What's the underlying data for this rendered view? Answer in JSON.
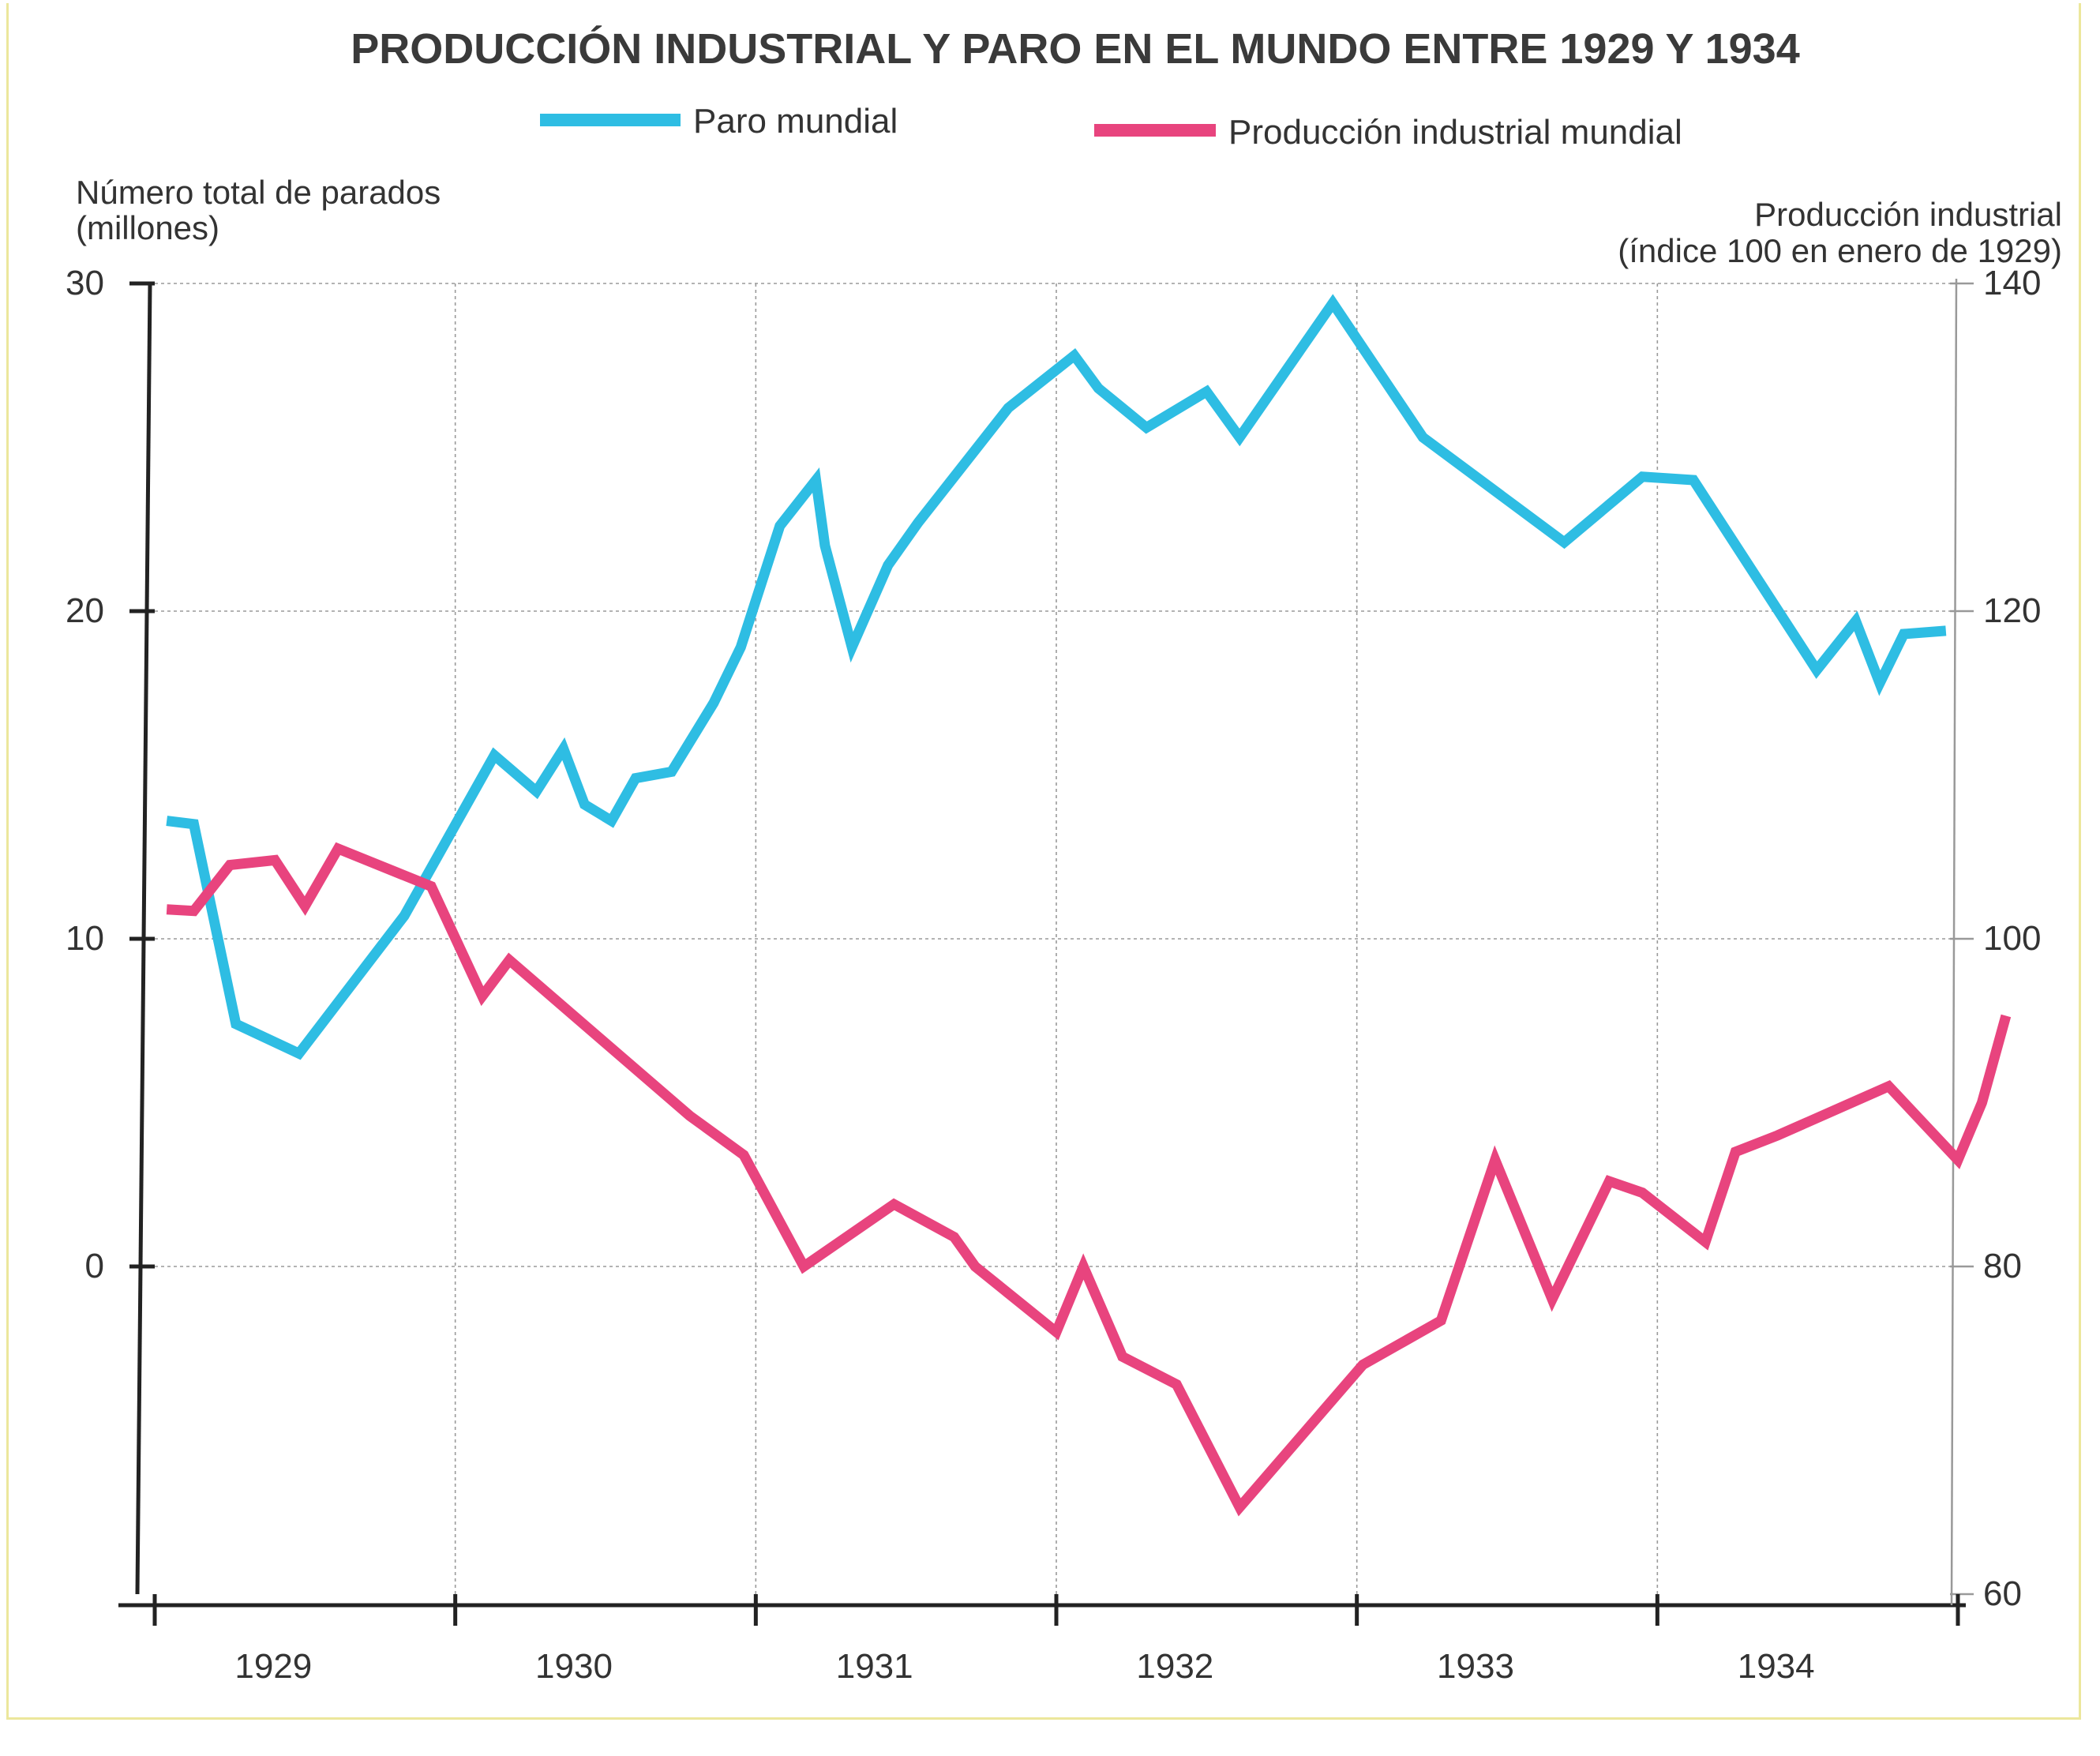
{
  "colors": {
    "paro": "#2ebde3",
    "produccion": "#e8447e",
    "axis": "#222222",
    "grid": "#9a9a9a"
  },
  "chart_data": {
    "type": "line",
    "title": "PRODUCCIÓN INDUSTRIAL Y PARO EN EL MUNDO ENTRE 1929 Y 1934",
    "y_left_label": [
      "Número total de parados",
      "(millones)"
    ],
    "y_right_label": [
      "Producción industrial",
      "(índice 100 en enero de 1929)"
    ],
    "x_ticks": [
      "1929",
      "1930",
      "1931",
      "1932",
      "1933",
      "1934"
    ],
    "xlim": [
      1929.0,
      1935.0
    ],
    "y_left_ticks": [
      "30",
      "20",
      "10",
      "0"
    ],
    "y_left_lim": [
      -10,
      30
    ],
    "y_right_ticks": [
      "140",
      "120",
      "100",
      "80",
      "60"
    ],
    "y_right_lim": [
      60,
      140
    ],
    "legend": [
      "Paro mundial",
      "Producción industrial mundial"
    ],
    "series": [
      {
        "name": "Paro mundial",
        "axis": "left",
        "x": [
          1929.04,
          1929.13,
          1929.27,
          1929.48,
          1929.83,
          1930.13,
          1930.27,
          1930.36,
          1930.43,
          1930.52,
          1930.6,
          1930.72,
          1930.86,
          1930.95,
          1931.08,
          1931.2,
          1931.23,
          1931.32,
          1931.44,
          1931.54,
          1931.84,
          1932.06,
          1932.14,
          1932.3,
          1932.5,
          1932.61,
          1932.92,
          1933.22,
          1933.69,
          1933.95,
          1934.12,
          1934.53,
          1934.66,
          1934.74,
          1934.82,
          1934.96
        ],
        "values": [
          13.6,
          13.5,
          7.4,
          6.5,
          10.7,
          15.6,
          14.5,
          15.8,
          14.1,
          13.6,
          14.9,
          15.1,
          17.2,
          18.9,
          22.6,
          24.0,
          22.0,
          18.9,
          21.4,
          22.7,
          26.2,
          27.8,
          26.8,
          25.6,
          26.7,
          25.3,
          29.4,
          25.3,
          22.1,
          24.1,
          24.0,
          18.2,
          19.7,
          17.8,
          19.3,
          19.4
        ]
      },
      {
        "name": "Producción industrial mundial",
        "axis": "right",
        "x": [
          1929.04,
          1929.13,
          1929.25,
          1929.4,
          1929.5,
          1929.61,
          1929.92,
          1930.09,
          1930.18,
          1930.78,
          1930.96,
          1931.16,
          1931.46,
          1931.66,
          1931.73,
          1932.0,
          1932.09,
          1932.22,
          1932.4,
          1932.61,
          1933.02,
          1933.28,
          1933.46,
          1933.65,
          1933.84,
          1933.95,
          1934.16,
          1934.26,
          1934.4,
          1934.77,
          1935.0,
          1935.08,
          1935.16
        ],
        "values": [
          101.8,
          101.7,
          104.5,
          104.8,
          102.0,
          105.5,
          103.2,
          96.5,
          98.7,
          89.2,
          86.8,
          80.0,
          83.8,
          81.8,
          80.0,
          76.0,
          80.0,
          74.5,
          72.8,
          65.3,
          74.0,
          76.7,
          86.5,
          78.0,
          85.2,
          84.5,
          81.5,
          87.0,
          88.0,
          91.0,
          86.5,
          90.0,
          95.3
        ]
      }
    ]
  }
}
